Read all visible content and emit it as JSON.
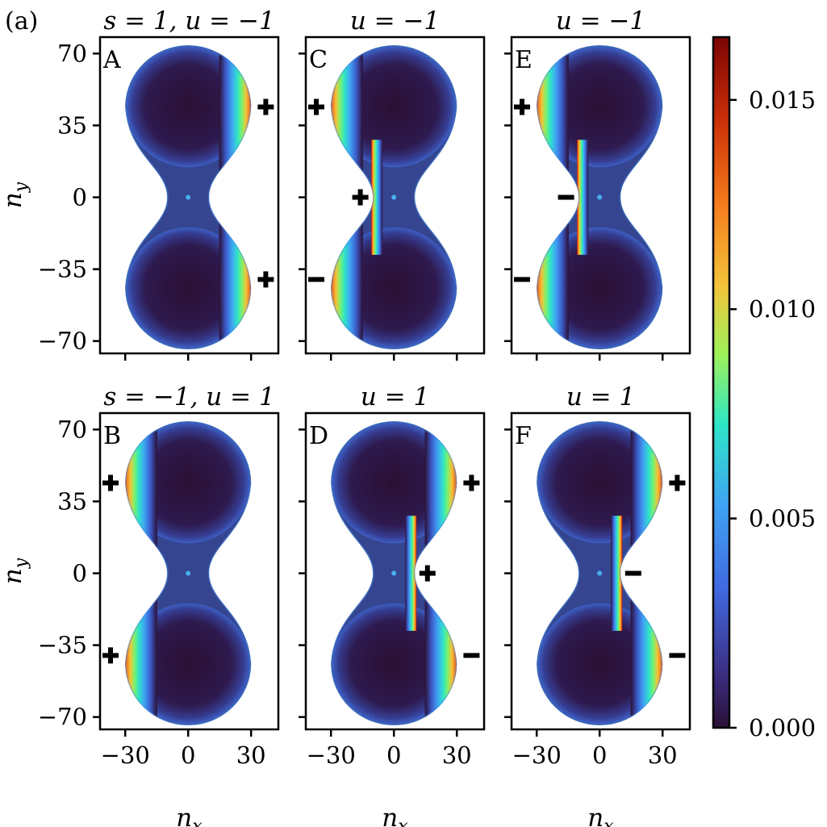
{
  "figure_label": "(a)",
  "chart_data": {
    "type": "heatmap",
    "description_note": "6 panels, density on a dumbbell-shaped lattice; colorbar 0.000 to ~0.0165",
    "xlabel": "n",
    "xlabel_sub": "x",
    "ylabel": "n",
    "ylabel_sub": "y",
    "x_ticks": [
      -30,
      0,
      30
    ],
    "x_tick_labels": [
      "−30",
      "0",
      "30"
    ],
    "y_ticks": [
      70,
      35,
      0,
      -35,
      -70
    ],
    "y_tick_labels": [
      "70",
      "35",
      "0",
      "−35",
      "−70"
    ],
    "xlim": [
      -42,
      43
    ],
    "ylim": [
      -76,
      78
    ],
    "colorbar": {
      "min": 0.0,
      "max": 0.0165,
      "ticks": [
        0.0,
        0.005,
        0.01,
        0.015
      ],
      "tick_labels": [
        "0.000",
        "0.005",
        "0.010",
        "0.015"
      ]
    },
    "panels": [
      {
        "id": "A",
        "title": "s = 1, u = −1",
        "row": 0,
        "col": 0,
        "edge_side": "right",
        "waist_edge": false,
        "markers": [
          {
            "sign": "+",
            "x": 37,
            "y": 44
          },
          {
            "sign": "+",
            "x": 37,
            "y": -40
          }
        ]
      },
      {
        "id": "C",
        "title": "u = −1",
        "row": 0,
        "col": 1,
        "edge_side": "left",
        "waist_edge": true,
        "markers": [
          {
            "sign": "+",
            "x": -37,
            "y": 44
          },
          {
            "sign": "+",
            "x": -16,
            "y": 0
          },
          {
            "sign": "−",
            "x": -37,
            "y": -40
          }
        ]
      },
      {
        "id": "E",
        "title": "u = −1",
        "row": 0,
        "col": 2,
        "edge_side": "left",
        "waist_edge": true,
        "markers": [
          {
            "sign": "+",
            "x": -37,
            "y": 44
          },
          {
            "sign": "−",
            "x": -16,
            "y": 0
          },
          {
            "sign": "−",
            "x": -37,
            "y": -40
          }
        ]
      },
      {
        "id": "B",
        "title": "s = −1, u = 1",
        "row": 1,
        "col": 0,
        "edge_side": "left",
        "waist_edge": false,
        "markers": [
          {
            "sign": "+",
            "x": -37,
            "y": 44
          },
          {
            "sign": "+",
            "x": -37,
            "y": -40
          }
        ]
      },
      {
        "id": "D",
        "title": "u = 1",
        "row": 1,
        "col": 1,
        "edge_side": "right",
        "waist_edge": true,
        "markers": [
          {
            "sign": "+",
            "x": 37,
            "y": 44
          },
          {
            "sign": "+",
            "x": 16,
            "y": 0
          },
          {
            "sign": "−",
            "x": 37,
            "y": -40
          }
        ]
      },
      {
        "id": "F",
        "title": "u = 1",
        "row": 1,
        "col": 2,
        "edge_side": "right",
        "waist_edge": true,
        "markers": [
          {
            "sign": "+",
            "x": 37,
            "y": 44
          },
          {
            "sign": "−",
            "x": 16,
            "y": 0
          },
          {
            "sign": "−",
            "x": 37,
            "y": -40
          }
        ]
      }
    ]
  }
}
